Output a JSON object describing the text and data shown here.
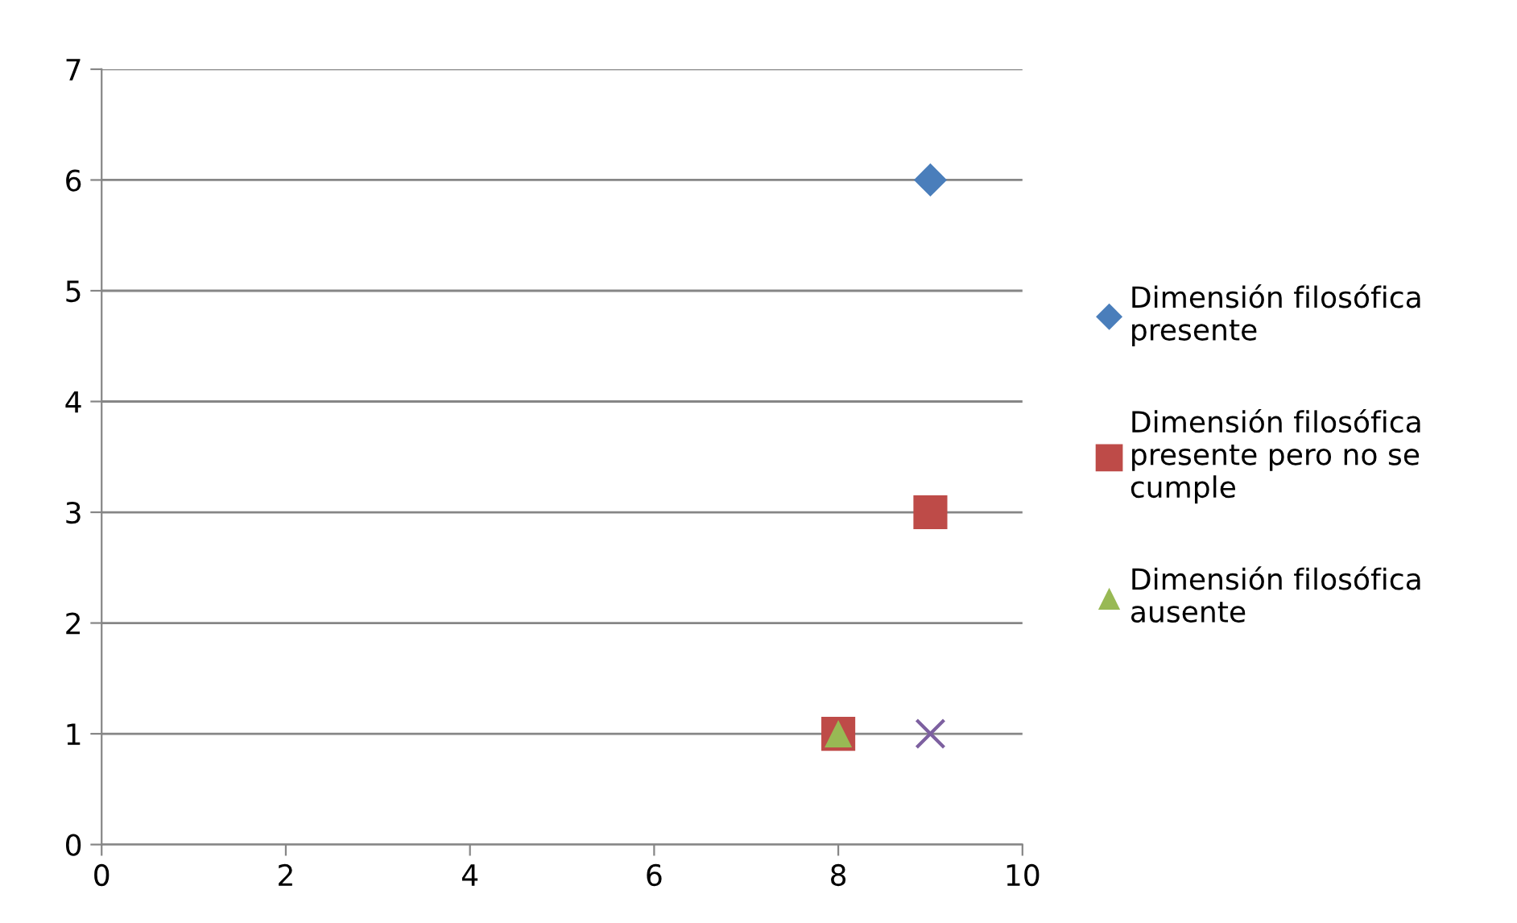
{
  "chart_data": {
    "type": "scatter",
    "x": [
      8,
      9
    ],
    "xlim": [
      0,
      10
    ],
    "xticks": [
      0,
      2,
      4,
      6,
      8,
      10
    ],
    "ylim": [
      0,
      7
    ],
    "yticks": [
      0,
      1,
      2,
      3,
      4,
      5,
      6,
      7
    ],
    "grid": "y",
    "legend": "right",
    "series": [
      {
        "name": "Dimensión filosófica presente",
        "color": "#4a7ebb",
        "marker": "diamond",
        "values": [
          null,
          6
        ]
      },
      {
        "name": "Dimensión filosófica presente pero no se cumple",
        "color": "#be4b48",
        "marker": "square",
        "values": [
          1,
          3
        ]
      },
      {
        "name": "Dimensión filosófica ausente",
        "color": "#98b954",
        "marker": "triangle",
        "values": [
          1,
          null
        ]
      },
      {
        "color": "#7d60a0",
        "marker": "cross",
        "values": [
          null,
          1
        ]
      }
    ]
  }
}
